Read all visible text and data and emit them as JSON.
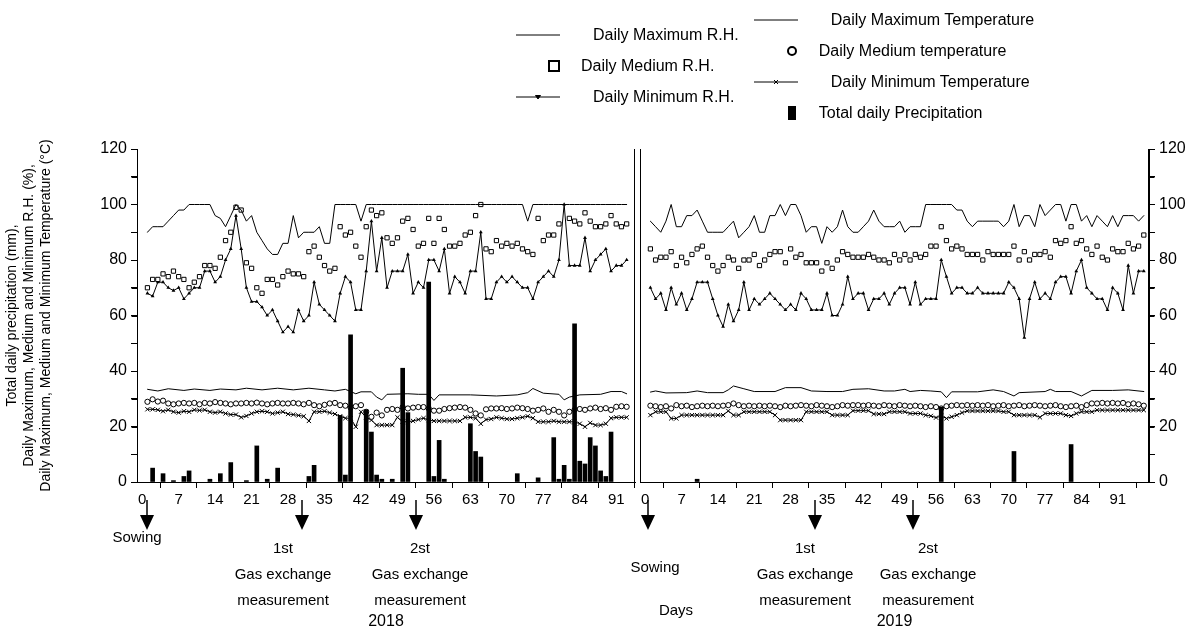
{
  "chart_data": [
    {
      "type": "line",
      "xlabel": "2018",
      "ylabel": "Total daily precipitation (mm),\nDaily Maximum, Medium and Minimum R.H. (%),\nDaily Maximum, Medium and Minimum Temperature (°C)",
      "legend": "top",
      "x": [
        1,
        2,
        3,
        4,
        5,
        6,
        7,
        8,
        9,
        10,
        11,
        12,
        13,
        14,
        15,
        16,
        17,
        18,
        19,
        20,
        21,
        22,
        23,
        24,
        25,
        26,
        27,
        28,
        29,
        30,
        31,
        32,
        33,
        34,
        35,
        36,
        37,
        38,
        39,
        40,
        41,
        42,
        43,
        44,
        45,
        46,
        47,
        48,
        49,
        50,
        51,
        52,
        53,
        54,
        55,
        56,
        57,
        58,
        59,
        60,
        61,
        62,
        63,
        64,
        65,
        66,
        67,
        68,
        69,
        70,
        71,
        72,
        73,
        74,
        75,
        76,
        77,
        78,
        79,
        80,
        81,
        82,
        83,
        84,
        85,
        86,
        87,
        88,
        89,
        90,
        91,
        92,
        93
      ],
      "xlim": [
        -1,
        94.6
      ],
      "xticks": [
        0,
        7,
        14,
        21,
        28,
        35,
        42,
        49,
        56,
        63,
        70,
        77,
        84,
        91
      ],
      "ylim": [
        0,
        120
      ],
      "yticks": [
        0,
        {
          "value": 10,
          "label": null
        },
        20,
        {
          "value": 30,
          "label": null
        },
        40,
        {
          "value": 50,
          "label": null
        },
        60,
        {
          "value": 70,
          "label": null
        },
        80,
        {
          "value": 90,
          "label": null
        },
        100,
        {
          "value": 110,
          "label": null
        },
        120
      ],
      "series": [
        {
          "name": "Daily Maximum R.H.",
          "marker": "none",
          "color": "#000000",
          "values": [
            90,
            92,
            92,
            92,
            94,
            96,
            98,
            98,
            100,
            100,
            100,
            100,
            100,
            96,
            95,
            92,
            96,
            100,
            98,
            94,
            96,
            90,
            87,
            84,
            82,
            82,
            86,
            86,
            96,
            88,
            90,
            90,
            90,
            92,
            86,
            86,
            100,
            100,
            100,
            100,
            100,
            94,
            100,
            100,
            100,
            100,
            100,
            100,
            100,
            100,
            100,
            100,
            100,
            100,
            100,
            100,
            100,
            100,
            100,
            100,
            100,
            100,
            100,
            100,
            100,
            100,
            100,
            100,
            100,
            100,
            100,
            100,
            100,
            94,
            100,
            100,
            100,
            100,
            100,
            100,
            100,
            100,
            100,
            100,
            100,
            100,
            100,
            100,
            100,
            100,
            100,
            100,
            100
          ]
        },
        {
          "name": "Daily Medium R.H.",
          "type": "scatter",
          "marker": "square",
          "color": "#000000",
          "values": [
            70,
            73,
            73,
            75,
            74,
            76,
            74,
            73,
            70,
            72,
            74,
            78,
            78,
            77,
            81,
            87,
            90,
            99,
            98,
            79,
            77,
            70,
            68,
            73,
            73,
            71,
            74,
            76,
            75,
            75,
            74,
            83,
            85,
            81,
            78,
            76,
            77,
            92,
            89,
            90,
            85,
            81,
            92,
            98,
            96,
            97,
            88,
            86,
            88,
            94,
            95,
            91,
            85,
            86,
            95,
            86,
            95,
            91,
            85,
            85,
            86,
            89,
            90,
            96,
            100,
            84,
            83,
            87,
            85,
            86,
            85,
            86,
            84,
            83,
            82,
            95,
            87,
            89,
            89,
            93,
            null,
            95,
            94,
            93,
            97,
            94,
            92,
            92,
            93,
            96,
            93,
            92,
            93
          ]
        },
        {
          "name": "Daily Minimum R.H.",
          "marker": "triangle",
          "color": "#000000",
          "values": [
            68,
            67,
            72,
            72,
            70,
            69,
            70,
            66,
            68,
            70,
            70,
            76,
            76,
            72,
            74,
            80,
            84,
            96,
            84,
            70,
            65,
            65,
            63,
            60,
            62,
            58,
            54,
            56,
            54,
            62,
            58,
            60,
            72,
            64,
            62,
            60,
            58,
            68,
            74,
            72,
            62,
            62,
            76,
            94,
            76,
            88,
            70,
            76,
            76,
            76,
            82,
            68,
            72,
            70,
            80,
            80,
            76,
            84,
            68,
            74,
            72,
            68,
            76,
            76,
            90,
            66,
            66,
            72,
            74,
            72,
            74,
            72,
            70,
            70,
            66,
            72,
            74,
            76,
            74,
            80,
            100,
            78,
            78,
            78,
            88,
            76,
            80,
            82,
            84,
            76,
            78,
            78,
            80
          ]
        },
        {
          "name": "Daily Maximum Temperature",
          "marker": "none",
          "color": "#000000",
          "x": [
            1,
            3,
            5,
            8,
            10,
            13,
            15,
            18,
            20,
            23,
            26,
            29,
            32,
            35,
            37,
            39,
            41,
            42,
            44,
            45,
            46,
            47,
            51,
            53,
            55,
            56,
            57,
            63,
            68,
            72,
            74,
            75,
            77,
            80,
            81,
            82,
            84,
            88,
            90,
            92,
            93
          ],
          "values": [
            33.4,
            32.8,
            33.6,
            33,
            33.5,
            33,
            33.5,
            33.2,
            33.8,
            33.2,
            33.8,
            33.2,
            33.8,
            33.2,
            32.8,
            33.4,
            31.8,
            32.5,
            32.5,
            30.6,
            29.6,
            31.6,
            31.8,
            31.6,
            31.6,
            29.4,
            31.4,
            31.4,
            31,
            31.4,
            32.2,
            33.7,
            32,
            31.6,
            29.6,
            30.6,
            31.4,
            31.6,
            32.6,
            32.6,
            31.8
          ]
        },
        {
          "name": "Daily Medium temperature",
          "type": "scatter",
          "marker": "circle",
          "color": "#000000",
          "values": [
            28.9,
            29.8,
            29,
            29.3,
            28.3,
            28,
            28.3,
            28.5,
            28.3,
            28.5,
            28,
            28.5,
            28.3,
            28.8,
            28.5,
            28.3,
            28,
            28.3,
            28.3,
            28.5,
            28.3,
            28.6,
            28.3,
            28,
            28.3,
            28.5,
            28.3,
            28.3,
            28.5,
            28.3,
            28,
            28.5,
            27.7,
            27.3,
            27.8,
            28.3,
            28.5,
            27.7,
            27.5,
            26.8,
            27.3,
            27.7,
            25.3,
            23.5,
            25,
            24,
            26,
            26.3,
            26,
            27,
            26.5,
            26.8,
            27,
            27,
            26.5,
            25.7,
            25.7,
            26.3,
            26.6,
            26.8,
            27,
            26.8,
            26,
            24.7,
            24,
            26.2,
            26.5,
            26.5,
            26.6,
            26.3,
            26.5,
            26.8,
            26.6,
            26.3,
            25.7,
            26,
            26.5,
            25.3,
            26,
            25.3,
            24,
            25.3,
            26,
            26.3,
            26,
            26.5,
            26.8,
            26.3,
            26.6,
            26,
            27.1,
            27.3,
            27.1
          ]
        },
        {
          "name": "Daily Minimum Temperature",
          "marker": "cross",
          "color": "#000000",
          "values": [
            26.2,
            26.2,
            26,
            25.5,
            26,
            25.3,
            25,
            25.5,
            25.3,
            26,
            25.8,
            26,
            25.3,
            25,
            25.3,
            24.7,
            24.3,
            24.3,
            23.3,
            23.8,
            24.7,
            25.3,
            25.5,
            25.3,
            24.7,
            25,
            25.3,
            24.5,
            24.3,
            24,
            23.7,
            22,
            25.3,
            25.3,
            25.5,
            25,
            24.5,
            23.7,
            23,
            23,
            19.9,
            25.3,
            23.3,
            22.3,
            20.5,
            20.5,
            20.5,
            20.5,
            23.3,
            21.7,
            21.7,
            22,
            22.5,
            23,
            22.3,
            22,
            22,
            22,
            22,
            22,
            22,
            23.3,
            23.3,
            23,
            21,
            22.5,
            22.7,
            23.3,
            23,
            22.7,
            22.7,
            23,
            23.3,
            23.7,
            23,
            21.7,
            21.7,
            21.7,
            22,
            21.7,
            21.7,
            21.7,
            21.7,
            21,
            19.9,
            21.3,
            20.5,
            20.5,
            21,
            23,
            23.3,
            23.3,
            23.3
          ]
        },
        {
          "name": "Total daily Precipitation",
          "type": "bar",
          "color": "#000000",
          "x": [
            2,
            4,
            6,
            8,
            9,
            13,
            15,
            17,
            20,
            22,
            24,
            26,
            32,
            33,
            38,
            39,
            40,
            43,
            44,
            45,
            46,
            48,
            50,
            51,
            55,
            56,
            57,
            58,
            63,
            64,
            65,
            72,
            76,
            79,
            80,
            81,
            82,
            83,
            84,
            85,
            86,
            87,
            88,
            89,
            90
          ],
          "values": [
            5,
            3,
            0.5,
            2,
            4,
            1,
            3,
            7,
            0.5,
            13,
            1,
            5,
            2,
            6,
            24,
            2.5,
            53,
            26,
            18,
            2.5,
            1,
            1,
            41,
            25,
            72,
            2,
            15,
            1,
            21,
            11,
            9,
            3,
            1.5,
            16,
            1,
            6,
            1,
            57,
            7.5,
            6.5,
            16,
            13,
            4,
            2,
            18
          ]
        }
      ],
      "annotations": [
        "Sowing",
        "1st\nGas exchange\nmeasurement",
        "2st\nGas exchange\nmeasurement"
      ]
    },
    {
      "type": "line",
      "xlabel": "2019",
      "x": [
        1,
        2,
        3,
        4,
        5,
        6,
        7,
        8,
        9,
        10,
        11,
        12,
        13,
        14,
        15,
        16,
        17,
        18,
        19,
        20,
        21,
        22,
        23,
        24,
        25,
        26,
        27,
        28,
        29,
        30,
        31,
        32,
        33,
        34,
        35,
        36,
        37,
        38,
        39,
        40,
        41,
        42,
        43,
        44,
        45,
        46,
        47,
        48,
        49,
        50,
        51,
        52,
        53,
        54,
        55,
        56,
        57,
        58,
        59,
        60,
        61,
        62,
        63,
        64,
        65,
        66,
        67,
        68,
        69,
        70,
        71,
        72,
        73,
        74,
        75,
        76,
        77,
        78,
        79,
        80,
        81,
        82,
        83,
        84,
        85,
        86,
        87,
        88,
        89,
        90,
        91,
        92,
        93,
        94,
        95,
        96
      ],
      "xlim": [
        -1,
        97
      ],
      "xticks": [
        0,
        7,
        14,
        21,
        28,
        35,
        42,
        49,
        56,
        63,
        70,
        77,
        84,
        91
      ],
      "ylim": [
        0,
        120
      ],
      "yticks": [
        0,
        {
          "value": 10,
          "label": null
        },
        20,
        {
          "value": 30,
          "label": null
        },
        40,
        {
          "value": 50,
          "label": null
        },
        60,
        {
          "value": 70,
          "label": null
        },
        80,
        {
          "value": 90,
          "label": null
        },
        100,
        {
          "value": 110,
          "label": null
        },
        120
      ],
      "series": [
        {
          "marker": "none",
          "color": "#000000",
          "values": [
            94,
            92,
            90,
            94,
            100,
            92,
            92,
            96,
            96,
            98,
            94,
            90,
            90,
            90,
            90,
            92,
            94,
            88,
            90,
            92,
            96,
            90,
            90,
            96,
            96,
            100,
            96,
            100,
            100,
            96,
            90,
            92,
            92,
            86,
            92,
            90,
            92,
            98,
            92,
            90,
            90,
            92,
            94,
            98,
            94,
            92,
            92,
            92,
            94,
            90,
            92,
            92,
            92,
            100,
            100,
            100,
            100,
            100,
            100,
            98,
            98,
            94,
            92,
            94,
            94,
            94,
            94,
            94,
            92,
            94,
            100,
            92,
            96,
            96,
            92,
            100,
            96,
            98,
            100,
            100,
            94,
            100,
            100,
            94,
            96,
            92,
            96,
            94,
            92,
            96,
            92,
            96,
            96,
            96,
            94,
            96
          ]
        },
        {
          "type": "scatter",
          "marker": "square",
          "color": "#000000",
          "values": [
            84,
            80,
            81,
            81,
            83,
            78,
            81,
            79,
            82,
            84,
            85,
            81,
            78,
            76,
            78,
            81,
            80,
            77,
            80,
            80,
            82,
            78,
            80,
            82,
            83,
            83,
            79,
            84,
            81,
            82,
            79,
            79,
            79,
            76,
            79,
            77,
            80,
            83,
            82,
            81,
            81,
            81,
            82,
            81,
            80,
            80,
            79,
            82,
            80,
            82,
            80,
            82,
            81,
            82,
            85,
            85,
            92,
            87,
            84,
            85,
            84,
            82,
            82,
            82,
            80,
            83,
            82,
            82,
            82,
            82,
            85,
            80,
            83,
            80,
            82,
            82,
            83,
            81,
            87,
            86,
            87,
            92,
            86,
            87,
            84,
            82,
            85,
            81,
            80,
            84,
            83,
            83,
            86,
            84,
            85,
            89
          ]
        },
        {
          "marker": "triangle",
          "color": "#000000",
          "values": [
            70,
            66,
            68,
            62,
            70,
            64,
            68,
            62,
            66,
            72,
            72,
            72,
            66,
            60,
            56,
            64,
            58,
            62,
            72,
            62,
            66,
            64,
            66,
            68,
            66,
            64,
            62,
            64,
            62,
            68,
            66,
            62,
            62,
            62,
            68,
            60,
            60,
            64,
            74,
            66,
            68,
            68,
            62,
            66,
            66,
            68,
            64,
            68,
            70,
            70,
            64,
            72,
            64,
            66,
            66,
            66,
            80,
            74,
            68,
            70,
            70,
            68,
            68,
            70,
            68,
            68,
            68,
            68,
            68,
            72,
            70,
            66,
            52,
            66,
            72,
            66,
            68,
            66,
            72,
            74,
            74,
            68,
            76,
            80,
            70,
            68,
            66,
            66,
            62,
            70,
            68,
            62,
            78,
            68,
            76,
            76
          ]
        },
        {
          "marker": "none",
          "color": "#000000",
          "x": [
            1,
            2,
            4,
            8,
            10,
            12,
            15,
            16,
            17,
            19,
            21,
            25,
            27,
            30,
            32,
            35,
            38,
            40,
            43,
            46,
            48,
            50,
            51,
            53,
            55,
            57,
            58,
            59,
            64,
            67,
            69,
            71,
            72,
            77,
            78,
            79,
            82,
            84,
            86,
            90,
            93,
            96
          ],
          "values": [
            32.4,
            32.8,
            32.1,
            32.2,
            32.8,
            32.2,
            32.2,
            33.2,
            34.6,
            33.6,
            32.6,
            32.6,
            34,
            34,
            32.8,
            32.6,
            32.6,
            33.4,
            33.6,
            32.8,
            32.8,
            33.4,
            32.6,
            33,
            32.8,
            32.5,
            30.4,
            32.5,
            32.5,
            33.2,
            32.6,
            31,
            32.2,
            32.6,
            33.4,
            32.6,
            32.6,
            31,
            33,
            33,
            33.2,
            32.6
          ]
        },
        {
          "type": "scatter",
          "marker": "circle",
          "color": "#000000",
          "values": [
            27.5,
            27.3,
            27,
            27.3,
            26.5,
            27.7,
            27.3,
            27.5,
            27,
            27.3,
            27.5,
            27.3,
            27.5,
            27.3,
            27.5,
            27.7,
            28.3,
            27.7,
            27.3,
            27.5,
            27.3,
            27.5,
            27.3,
            27.5,
            27.3,
            27,
            27.5,
            27.3,
            27.5,
            27.7,
            27.5,
            27.3,
            27.7,
            27.5,
            27.3,
            27,
            27.3,
            27.7,
            27.5,
            27.7,
            27.7,
            27.5,
            27.7,
            27.5,
            27.3,
            27.7,
            27.5,
            27.3,
            27.7,
            27.5,
            27.3,
            27.5,
            27.3,
            27,
            27.3,
            27,
            26.5,
            27.3,
            27.5,
            27.7,
            27.5,
            27.7,
            27.5,
            27.7,
            27.5,
            27.7,
            27.3,
            27.5,
            27.7,
            27.3,
            27.5,
            27.7,
            27.3,
            27.5,
            27.7,
            27.5,
            27.3,
            27.5,
            27.7,
            27.3,
            27,
            27.3,
            27.5,
            27,
            27.7,
            28.3,
            28.3,
            28.5,
            28.3,
            28.5,
            28.3,
            28.5,
            28,
            28.3,
            28,
            27.5
          ]
        },
        {
          "marker": "cross",
          "color": "#000000",
          "values": [
            24.1,
            25.3,
            25.3,
            25.3,
            22.9,
            22.9,
            24.1,
            24.1,
            24.1,
            24.1,
            24.1,
            24.1,
            24.1,
            24.1,
            24.1,
            25.6,
            24.1,
            24.1,
            25.3,
            25.3,
            25.3,
            25.3,
            25.3,
            25.3,
            24.1,
            22.3,
            22.3,
            22.3,
            22.3,
            22.3,
            25.3,
            25.3,
            25.3,
            25.3,
            25.3,
            24.1,
            24.1,
            24.1,
            24.1,
            25.7,
            25.7,
            25.7,
            25.7,
            24.5,
            24.5,
            24.5,
            25.3,
            25.3,
            25.3,
            25.3,
            24.7,
            24.7,
            24.7,
            24.1,
            23.8,
            23.2,
            23.8,
            22.9,
            23.5,
            24.1,
            25,
            25.6,
            25.6,
            25.6,
            25.6,
            25.6,
            25.6,
            25.6,
            25.3,
            25.3,
            24.1,
            24.1,
            24.1,
            24.1,
            24.1,
            23.3,
            24.7,
            24.7,
            24.7,
            24.7,
            24.1,
            23.8,
            24.7,
            25.3,
            25.3,
            25.3,
            25.9,
            25.9,
            25.9,
            25.9,
            25.9,
            25.9,
            25.9,
            25.9,
            25.9,
            25.9
          ]
        },
        {
          "type": "bar",
          "color": "#000000",
          "x": [
            10,
            57,
            71,
            82
          ],
          "values": [
            1,
            27,
            11,
            13.5
          ]
        }
      ],
      "annotations": [
        "Sowing",
        "Days",
        "1st\nGas exchange\nmeasurement",
        "2st\nGas exchange\nmeasurement"
      ]
    }
  ]
}
